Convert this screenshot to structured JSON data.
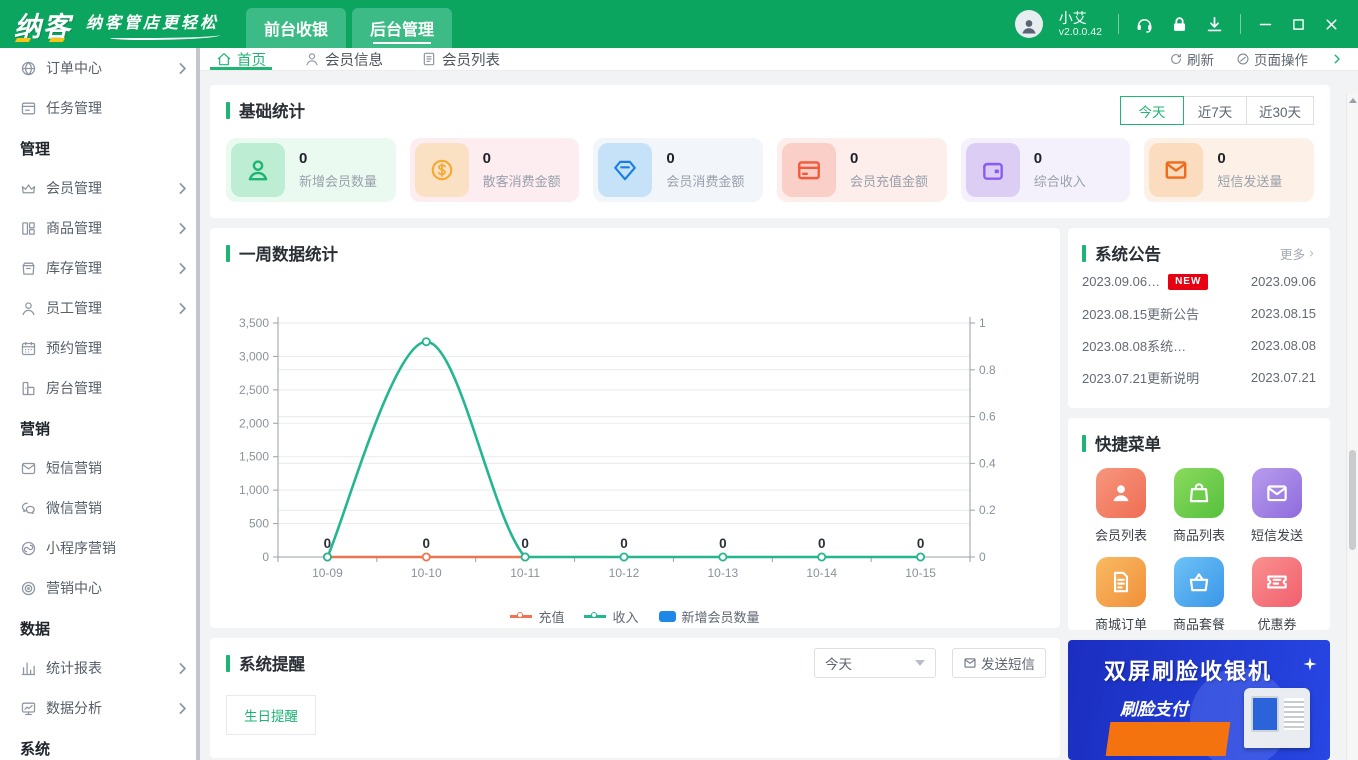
{
  "titlebar": {
    "logo": "纳客",
    "tagline": "纳客管店更轻松",
    "nav_tabs": [
      {
        "label": "前台收银",
        "active": false
      },
      {
        "label": "后台管理",
        "active": true
      }
    ],
    "user": {
      "name": "小艾",
      "version": "v2.0.0.42"
    }
  },
  "sidebar": {
    "items": [
      {
        "type": "item",
        "label": "订单中心",
        "icon": "globe",
        "arrow": true
      },
      {
        "type": "item",
        "label": "任务管理",
        "icon": "tasks",
        "arrow": false
      },
      {
        "type": "section",
        "label": "管理"
      },
      {
        "type": "item",
        "label": "会员管理",
        "icon": "crown",
        "arrow": true
      },
      {
        "type": "item",
        "label": "商品管理",
        "icon": "goods",
        "arrow": true
      },
      {
        "type": "item",
        "label": "库存管理",
        "icon": "inventory",
        "arrow": true
      },
      {
        "type": "item",
        "label": "员工管理",
        "icon": "staff",
        "arrow": true
      },
      {
        "type": "item",
        "label": "预约管理",
        "icon": "calendar",
        "arrow": false
      },
      {
        "type": "item",
        "label": "房台管理",
        "icon": "room",
        "arrow": false
      },
      {
        "type": "section",
        "label": "营销"
      },
      {
        "type": "item",
        "label": "短信营销",
        "icon": "sms",
        "arrow": false
      },
      {
        "type": "item",
        "label": "微信营销",
        "icon": "wechat",
        "arrow": false
      },
      {
        "type": "item",
        "label": "小程序营销",
        "icon": "mini",
        "arrow": false
      },
      {
        "type": "item",
        "label": "营销中心",
        "icon": "target",
        "arrow": false
      },
      {
        "type": "section",
        "label": "数据"
      },
      {
        "type": "item",
        "label": "统计报表",
        "icon": "barchart",
        "arrow": true
      },
      {
        "type": "item",
        "label": "数据分析",
        "icon": "analysis",
        "arrow": true
      },
      {
        "type": "section",
        "label": "系统"
      }
    ]
  },
  "tabbar": {
    "tabs": [
      {
        "label": "首页",
        "icon": "home",
        "active": true
      },
      {
        "label": "会员信息",
        "icon": "user",
        "active": false
      },
      {
        "label": "会员列表",
        "icon": "doc",
        "active": false
      }
    ],
    "refresh": "刷新",
    "page_actions": "页面操作"
  },
  "stats": {
    "title": "基础统计",
    "ranges": [
      {
        "label": "今天",
        "active": true
      },
      {
        "label": "近7天",
        "active": false
      },
      {
        "label": "近30天",
        "active": false
      }
    ],
    "cards": [
      {
        "value": "0",
        "label": "新增会员数量",
        "icon": "member",
        "card_bg": "#eafaf1",
        "icon_bg": "#bdedd3",
        "icon_color": "#1db573"
      },
      {
        "value": "0",
        "label": "散客消费金额",
        "icon": "dollar",
        "card_bg": "#fdedf0",
        "icon_bg": "#fbe1c3",
        "icon_color": "#f5a832"
      },
      {
        "value": "0",
        "label": "会员消费金额",
        "icon": "diamond",
        "card_bg": "#f2f6fb",
        "icon_bg": "#c5e2f9",
        "icon_color": "#1a7ee8"
      },
      {
        "value": "0",
        "label": "会员充值金额",
        "icon": "card",
        "card_bg": "#fdeeeb",
        "icon_bg": "#f9cfc7",
        "icon_color": "#f4593b"
      },
      {
        "value": "0",
        "label": "综合收入",
        "icon": "wallet",
        "card_bg": "#f5f1fc",
        "icon_bg": "#dccdf5",
        "icon_color": "#8a5cf0"
      },
      {
        "value": "0",
        "label": "短信发送量",
        "icon": "envelope",
        "card_bg": "#fdf1e7",
        "icon_bg": "#fbdcbe",
        "icon_color": "#f06a1d"
      }
    ]
  },
  "chart_panel": {
    "title": "一周数据统计"
  },
  "chart_data": {
    "type": "line",
    "title": "一周数据统计",
    "x": [
      "10-09",
      "10-10",
      "10-11",
      "10-12",
      "10-13",
      "10-14",
      "10-15"
    ],
    "series": [
      {
        "name": "充值",
        "type": "line",
        "color": "#f0734f",
        "values": [
          0,
          0,
          0,
          null,
          null,
          null,
          null
        ]
      },
      {
        "name": "收入",
        "type": "line",
        "color": "#24b690",
        "values": [
          0,
          3220,
          0,
          0,
          0,
          0,
          0
        ]
      },
      {
        "name": "新增会员数量",
        "type": "bar",
        "color": "#1f87e8",
        "values": [
          0,
          0,
          0,
          0,
          0,
          0,
          0
        ]
      }
    ],
    "point_labels": [
      "0",
      "0",
      "0",
      "0",
      "0",
      "0",
      "0"
    ],
    "y_left": {
      "min": 0,
      "max": 3500,
      "tick_step": 500,
      "labels": [
        "0",
        "500",
        "1,000",
        "1,500",
        "2,000",
        "2,500",
        "3,000",
        "3,500"
      ]
    },
    "y_right": {
      "min": 0,
      "max": 1,
      "tick_step": 0.2,
      "labels": [
        "0",
        "0.2",
        "0.4",
        "0.6",
        "0.8",
        "1"
      ]
    },
    "grid": true,
    "legend_position": "bottom"
  },
  "notices": {
    "title": "系统公告",
    "more": "更多",
    "items": [
      {
        "text": "2023.09.06…",
        "badge": "NEW",
        "date": "2023.09.06"
      },
      {
        "text": "2023.08.15更新公告",
        "badge": "",
        "date": "2023.08.15"
      },
      {
        "text": "2023.08.08系统…",
        "badge": "",
        "date": "2023.08.08"
      },
      {
        "text": "2023.07.21更新说明",
        "badge": "",
        "date": "2023.07.21"
      }
    ]
  },
  "quick_menu": {
    "title": "快捷菜单",
    "items": [
      {
        "label": "会员列表",
        "icon": "qperson",
        "bg": "linear-gradient(135deg,#f7967e,#ee6e53)"
      },
      {
        "label": "商品列表",
        "icon": "qbag",
        "bg": "linear-gradient(135deg,#8bda5e,#55c13c)"
      },
      {
        "label": "短信发送",
        "icon": "qenvelope",
        "bg": "linear-gradient(135deg,#b89ced,#8e6cdd)"
      },
      {
        "label": "商城订单",
        "icon": "qdoc",
        "bg": "linear-gradient(135deg,#f9ba62,#f0903a)"
      },
      {
        "label": "商品套餐",
        "icon": "qbasket",
        "bg": "linear-gradient(135deg,#6dc2f6,#3a96e8)"
      },
      {
        "label": "优惠券",
        "icon": "qcoupon",
        "bg": "linear-gradient(135deg,#f9918f,#f15f6e)"
      }
    ]
  },
  "reminders": {
    "title": "系统提醒",
    "filter_value": "今天",
    "send_sms": "发送短信",
    "tabs": [
      {
        "label": "生日提醒",
        "active": true
      }
    ]
  },
  "ad": {
    "line1": "双屏刷脸收银机",
    "line2": "刷脸支付"
  },
  "colors": {
    "accent_green": "#1cb574",
    "header_green": "#0ca55f",
    "badge_red": "#e60012"
  }
}
